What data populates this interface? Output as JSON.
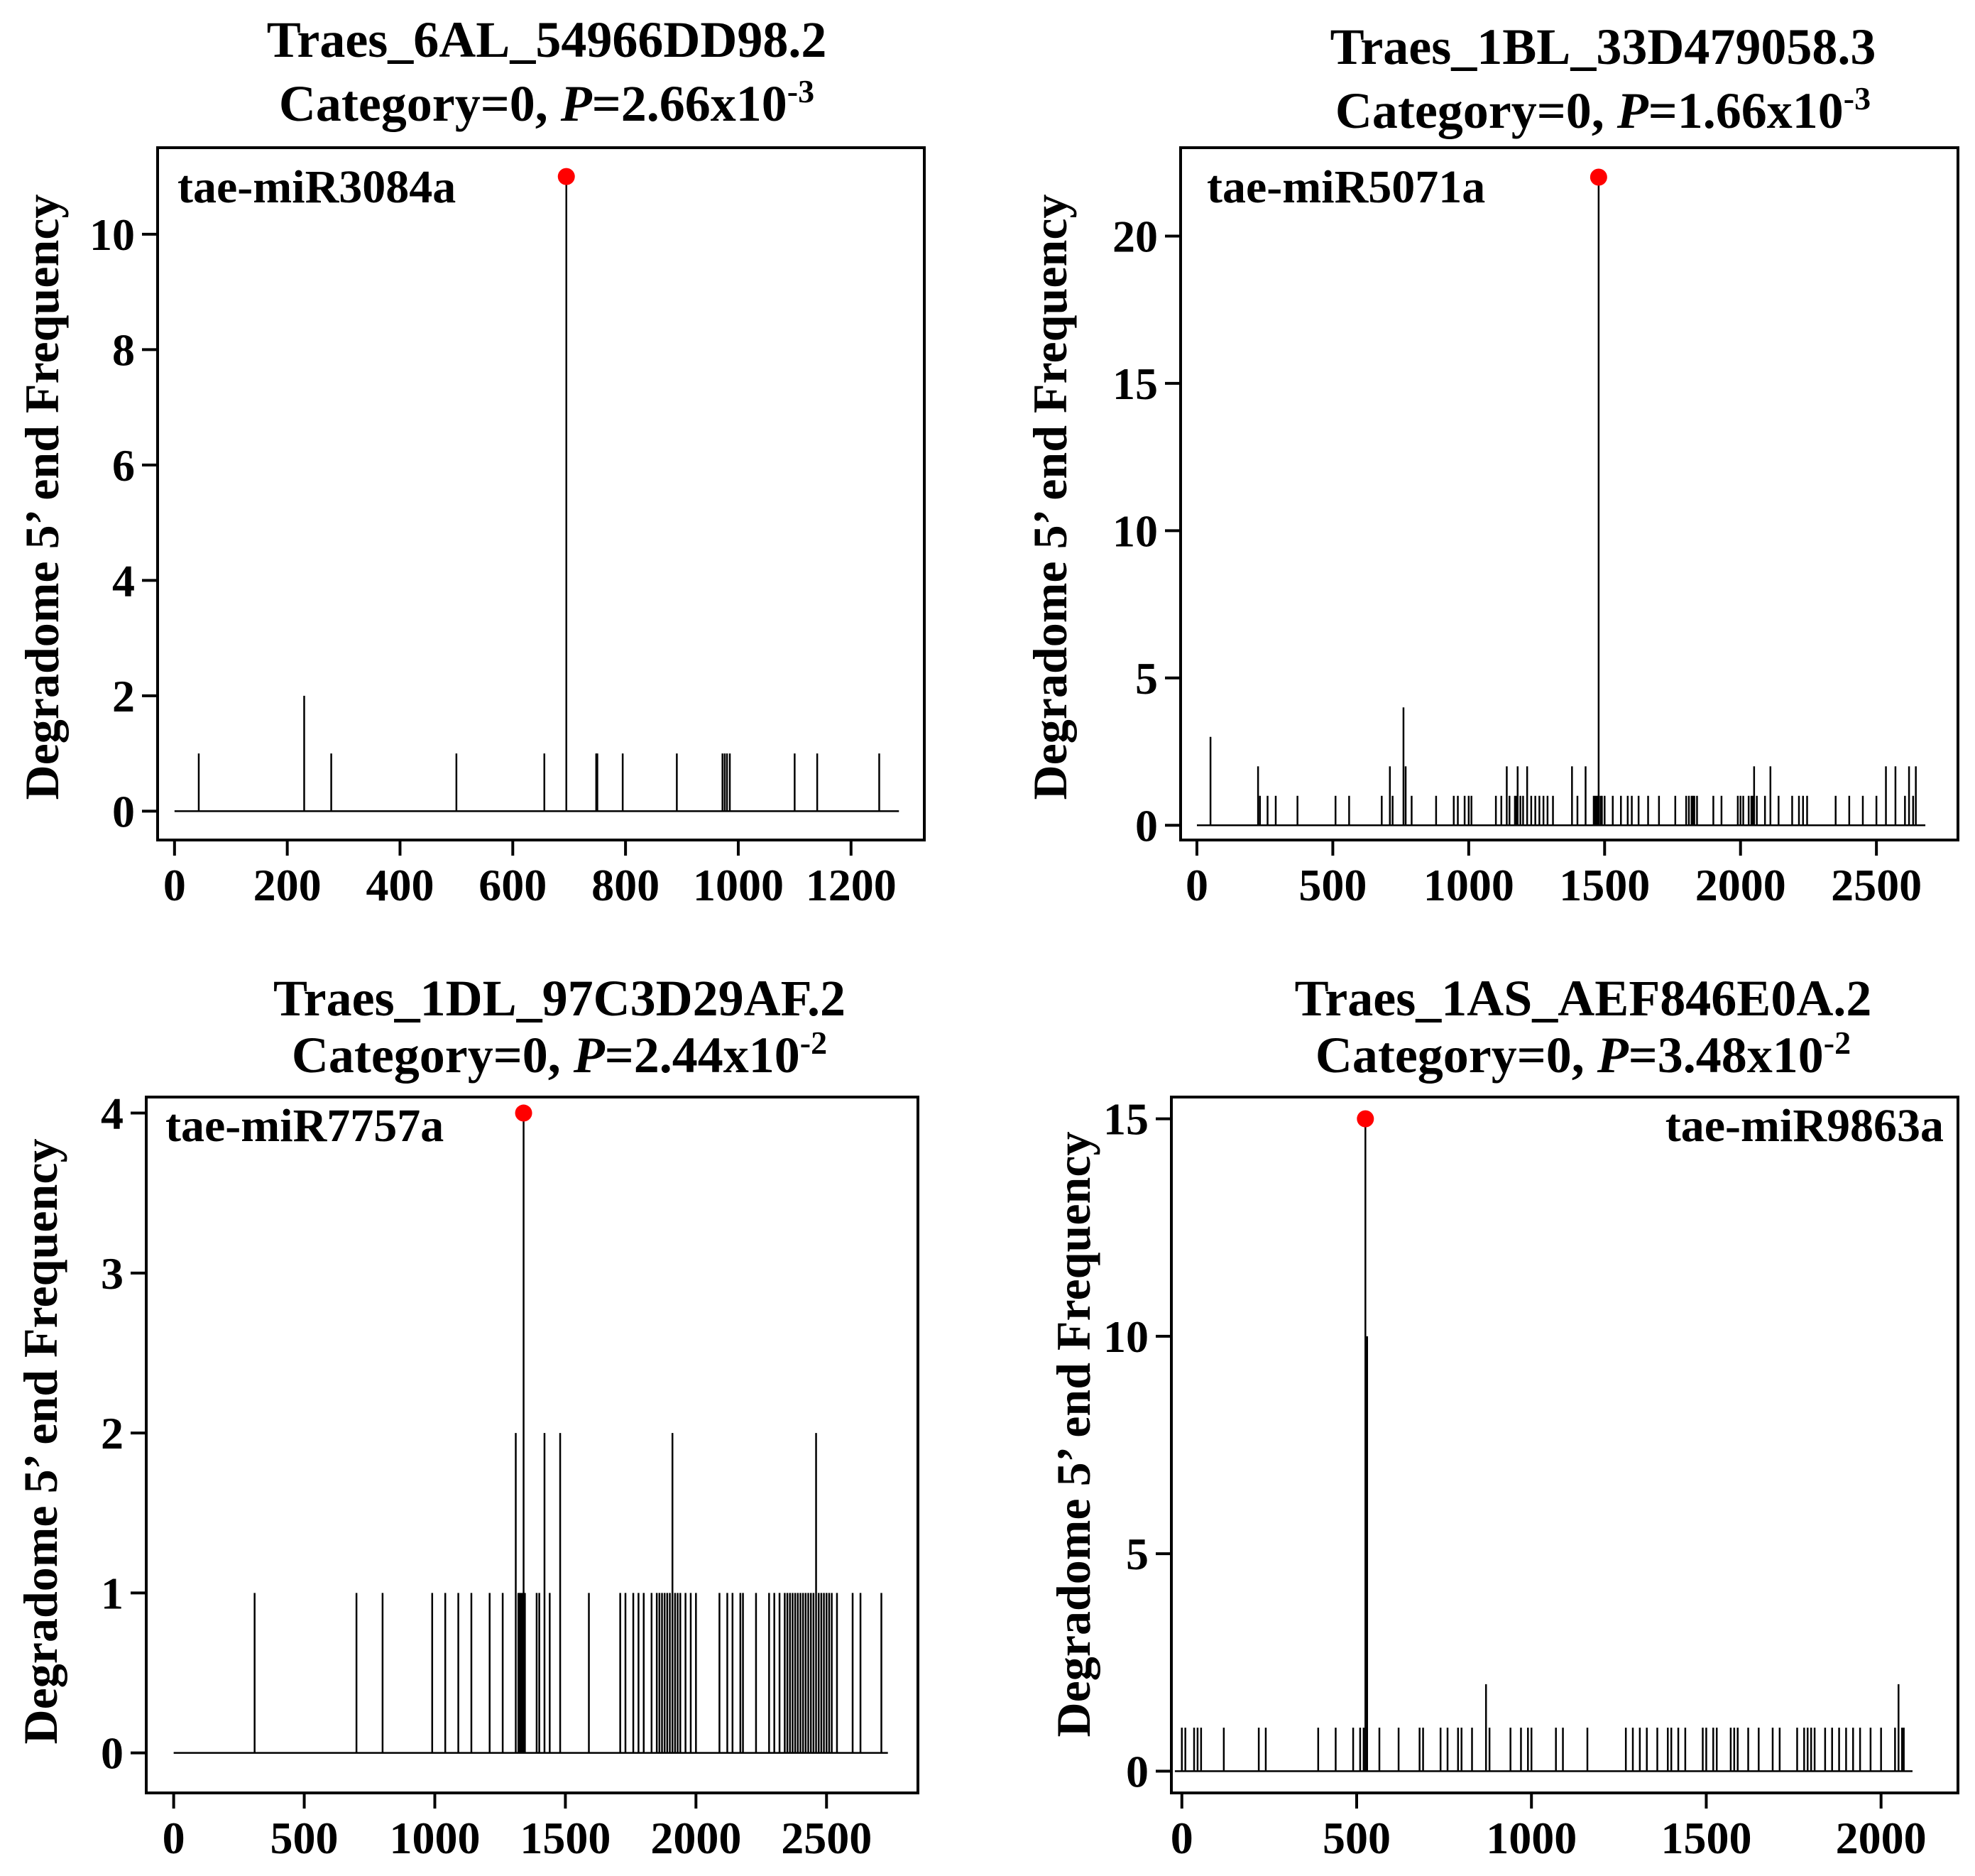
{
  "chart_data": [
    {
      "type": "bar",
      "title_line1": "Traes_6AL_54966DD98.2",
      "category_text": "Category=0, ",
      "p_italic": "P",
      "p_value_text": "=2.66x10",
      "p_exponent": "-3",
      "mirna": "tae-miR3084a",
      "ylabel": "Degradome 5’ end Frequency",
      "xlabel": "",
      "x_domain": [
        -30,
        1330
      ],
      "y_domain": [
        -0.5,
        11.5
      ],
      "x_ticks": [
        0,
        200,
        400,
        600,
        800,
        1000,
        1200
      ],
      "x_tick_labels": [
        "0",
        "200",
        "400",
        "600",
        "800",
        "1000",
        "1200"
      ],
      "y_ticks": [
        0,
        2,
        4,
        6,
        8,
        10
      ],
      "y_tick_labels": [
        "0",
        "2",
        "4",
        "6",
        "8",
        "10"
      ],
      "baseline_range": [
        0,
        1285
      ],
      "cleavage_site": {
        "x": 695,
        "y": 11
      },
      "highlight_color": "#ff0000",
      "peaks": [
        [
          43,
          1
        ],
        [
          230,
          2
        ],
        [
          278,
          1
        ],
        [
          500,
          1
        ],
        [
          656,
          1
        ],
        [
          695,
          11
        ],
        [
          748,
          1
        ],
        [
          750,
          1
        ],
        [
          795,
          1
        ],
        [
          891,
          1
        ],
        [
          972,
          1
        ],
        [
          976,
          1
        ],
        [
          980,
          1
        ],
        [
          985,
          1
        ],
        [
          1100,
          1
        ],
        [
          1140,
          1
        ],
        [
          1250,
          1
        ]
      ]
    },
    {
      "type": "bar",
      "title_line1": "Traes_1BL_33D479058.3",
      "category_text": "Category=0, ",
      "p_italic": "P",
      "p_value_text": "=1.66x10",
      "p_exponent": "-3",
      "mirna": "tae-miR5071a",
      "ylabel": "Degradome 5’ end Frequency",
      "xlabel": "",
      "x_domain": [
        -60,
        2800
      ],
      "y_domain": [
        -0.5,
        23
      ],
      "x_ticks": [
        0,
        500,
        1000,
        1500,
        2000,
        2500
      ],
      "x_tick_labels": [
        "0",
        "500",
        "1000",
        "1500",
        "2000",
        "2500"
      ],
      "y_ticks": [
        0,
        5,
        10,
        15,
        20
      ],
      "y_tick_labels": [
        "0",
        "5",
        "10",
        "15",
        "20"
      ],
      "baseline_range": [
        0,
        2680
      ],
      "cleavage_site": {
        "x": 1478,
        "y": 22
      },
      "highlight_color": "#ff0000",
      "peaks": [
        [
          50,
          3
        ],
        [
          225,
          2
        ],
        [
          232,
          1
        ],
        [
          260,
          1
        ],
        [
          290,
          1
        ],
        [
          370,
          1
        ],
        [
          510,
          1
        ],
        [
          560,
          1
        ],
        [
          680,
          1
        ],
        [
          710,
          2
        ],
        [
          720,
          1
        ],
        [
          760,
          4
        ],
        [
          768,
          2
        ],
        [
          790,
          1
        ],
        [
          880,
          1
        ],
        [
          945,
          1
        ],
        [
          960,
          1
        ],
        [
          985,
          1
        ],
        [
          1000,
          1
        ],
        [
          1010,
          1
        ],
        [
          1100,
          1
        ],
        [
          1120,
          1
        ],
        [
          1140,
          2
        ],
        [
          1150,
          1
        ],
        [
          1170,
          1
        ],
        [
          1175,
          1
        ],
        [
          1180,
          2
        ],
        [
          1190,
          1
        ],
        [
          1200,
          1
        ],
        [
          1215,
          2
        ],
        [
          1230,
          1
        ],
        [
          1245,
          1
        ],
        [
          1260,
          1
        ],
        [
          1275,
          1
        ],
        [
          1290,
          1
        ],
        [
          1310,
          1
        ],
        [
          1380,
          2
        ],
        [
          1400,
          1
        ],
        [
          1430,
          2
        ],
        [
          1460,
          1
        ],
        [
          1465,
          1
        ],
        [
          1470,
          1
        ],
        [
          1475,
          1
        ],
        [
          1478,
          22
        ],
        [
          1485,
          1
        ],
        [
          1490,
          1
        ],
        [
          1500,
          1
        ],
        [
          1530,
          1
        ],
        [
          1560,
          1
        ],
        [
          1585,
          1
        ],
        [
          1600,
          1
        ],
        [
          1625,
          1
        ],
        [
          1660,
          1
        ],
        [
          1700,
          1
        ],
        [
          1760,
          1
        ],
        [
          1800,
          1
        ],
        [
          1810,
          1
        ],
        [
          1820,
          1
        ],
        [
          1825,
          1
        ],
        [
          1830,
          1
        ],
        [
          1840,
          1
        ],
        [
          1900,
          1
        ],
        [
          1930,
          1
        ],
        [
          1990,
          1
        ],
        [
          2000,
          1
        ],
        [
          2010,
          1
        ],
        [
          2030,
          1
        ],
        [
          2040,
          1
        ],
        [
          2045,
          1
        ],
        [
          2050,
          2
        ],
        [
          2060,
          1
        ],
        [
          2090,
          1
        ],
        [
          2110,
          2
        ],
        [
          2140,
          1
        ],
        [
          2190,
          1
        ],
        [
          2215,
          1
        ],
        [
          2230,
          1
        ],
        [
          2245,
          1
        ],
        [
          2350,
          1
        ],
        [
          2400,
          1
        ],
        [
          2450,
          1
        ],
        [
          2500,
          1
        ],
        [
          2535,
          2
        ],
        [
          2570,
          2
        ],
        [
          2605,
          1
        ],
        [
          2620,
          2
        ],
        [
          2635,
          1
        ],
        [
          2645,
          2
        ]
      ]
    },
    {
      "type": "bar",
      "title_line1": "Traes_1DL_97C3D29AF.2",
      "category_text": "Category=0, ",
      "p_italic": "P",
      "p_value_text": "=2.44x10",
      "p_exponent": "-2",
      "mirna": "tae-miR7757a",
      "ylabel": "Degradome 5’ end Frequency",
      "xlabel": "",
      "x_domain": [
        -105,
        2850
      ],
      "y_domain": [
        -0.25,
        4.1
      ],
      "x_ticks": [
        0,
        500,
        1000,
        1500,
        2000,
        2500
      ],
      "x_tick_labels": [
        "0",
        "500",
        "1000",
        "1500",
        "2000",
        "2500"
      ],
      "y_ticks": [
        0,
        1,
        2,
        3,
        4
      ],
      "y_tick_labels": [
        "0",
        "1",
        "2",
        "3",
        "4"
      ],
      "baseline_range": [
        0,
        2735
      ],
      "cleavage_site": {
        "x": 1340,
        "y": 4
      },
      "highlight_color": "#ff0000",
      "peaks": [
        [
          310,
          1
        ],
        [
          700,
          1
        ],
        [
          800,
          1
        ],
        [
          990,
          1
        ],
        [
          1040,
          1
        ],
        [
          1090,
          1
        ],
        [
          1140,
          1
        ],
        [
          1210,
          1
        ],
        [
          1260,
          1
        ],
        [
          1310,
          2
        ],
        [
          1320,
          1
        ],
        [
          1325,
          1
        ],
        [
          1330,
          1
        ],
        [
          1335,
          1
        ],
        [
          1340,
          4
        ],
        [
          1345,
          1
        ],
        [
          1390,
          1
        ],
        [
          1400,
          1
        ],
        [
          1420,
          2
        ],
        [
          1440,
          1
        ],
        [
          1480,
          2
        ],
        [
          1590,
          1
        ],
        [
          1710,
          1
        ],
        [
          1730,
          1
        ],
        [
          1760,
          1
        ],
        [
          1780,
          1
        ],
        [
          1800,
          1
        ],
        [
          1830,
          1
        ],
        [
          1850,
          1
        ],
        [
          1860,
          1
        ],
        [
          1870,
          1
        ],
        [
          1880,
          1
        ],
        [
          1890,
          1
        ],
        [
          1900,
          1
        ],
        [
          1910,
          2
        ],
        [
          1920,
          1
        ],
        [
          1930,
          1
        ],
        [
          1940,
          1
        ],
        [
          1960,
          1
        ],
        [
          1980,
          1
        ],
        [
          2000,
          1
        ],
        [
          2090,
          1
        ],
        [
          2120,
          1
        ],
        [
          2140,
          1
        ],
        [
          2170,
          1
        ],
        [
          2180,
          1
        ],
        [
          2230,
          1
        ],
        [
          2280,
          1
        ],
        [
          2300,
          1
        ],
        [
          2320,
          1
        ],
        [
          2340,
          1
        ],
        [
          2350,
          1
        ],
        [
          2360,
          1
        ],
        [
          2370,
          1
        ],
        [
          2380,
          1
        ],
        [
          2390,
          1
        ],
        [
          2400,
          1
        ],
        [
          2410,
          1
        ],
        [
          2420,
          1
        ],
        [
          2430,
          1
        ],
        [
          2440,
          1
        ],
        [
          2450,
          1
        ],
        [
          2460,
          2
        ],
        [
          2470,
          1
        ],
        [
          2480,
          1
        ],
        [
          2490,
          1
        ],
        [
          2500,
          1
        ],
        [
          2510,
          1
        ],
        [
          2520,
          1
        ],
        [
          2540,
          1
        ],
        [
          2600,
          1
        ],
        [
          2630,
          1
        ],
        [
          2710,
          1
        ]
      ]
    },
    {
      "type": "bar",
      "title_line1": "Traes_1AS_AEF846E0A.2",
      "category_text": "Category=0, ",
      "p_italic": "P",
      "p_value_text": "=3.48x10",
      "p_exponent": "-2",
      "mirna": "tae-miR9863a",
      "ylabel": "Degradome 5’ end Frequency",
      "xlabel": "",
      "x_domain": [
        -30,
        2220
      ],
      "y_domain": [
        -0.5,
        15.5
      ],
      "x_ticks": [
        0,
        500,
        1000,
        1500,
        2000
      ],
      "x_tick_labels": [
        "0",
        "500",
        "1000",
        "1500",
        "2000"
      ],
      "y_ticks": [
        0,
        5,
        10,
        15
      ],
      "y_tick_labels": [
        "0",
        "5",
        "10",
        "15"
      ],
      "baseline_range": [
        -20,
        2090
      ],
      "cleavage_site": {
        "x": 525,
        "y": 15
      },
      "highlight_color": "#ff0000",
      "peaks": [
        [
          0,
          1
        ],
        [
          10,
          1
        ],
        [
          35,
          1
        ],
        [
          45,
          1
        ],
        [
          55,
          1
        ],
        [
          120,
          1
        ],
        [
          220,
          1
        ],
        [
          240,
          1
        ],
        [
          390,
          1
        ],
        [
          440,
          1
        ],
        [
          490,
          1
        ],
        [
          510,
          1
        ],
        [
          520,
          1
        ],
        [
          525,
          15
        ],
        [
          530,
          10
        ],
        [
          565,
          1
        ],
        [
          620,
          1
        ],
        [
          680,
          1
        ],
        [
          690,
          1
        ],
        [
          740,
          1
        ],
        [
          760,
          1
        ],
        [
          790,
          1
        ],
        [
          800,
          1
        ],
        [
          830,
          1
        ],
        [
          870,
          2
        ],
        [
          880,
          1
        ],
        [
          940,
          1
        ],
        [
          970,
          1
        ],
        [
          990,
          1
        ],
        [
          1000,
          1
        ],
        [
          1070,
          1
        ],
        [
          1090,
          1
        ],
        [
          1160,
          1
        ],
        [
          1270,
          1
        ],
        [
          1290,
          1
        ],
        [
          1310,
          1
        ],
        [
          1330,
          1
        ],
        [
          1360,
          1
        ],
        [
          1390,
          1
        ],
        [
          1400,
          1
        ],
        [
          1420,
          1
        ],
        [
          1440,
          1
        ],
        [
          1490,
          1
        ],
        [
          1500,
          1
        ],
        [
          1520,
          1
        ],
        [
          1530,
          1
        ],
        [
          1570,
          1
        ],
        [
          1580,
          1
        ],
        [
          1590,
          1
        ],
        [
          1620,
          1
        ],
        [
          1650,
          1
        ],
        [
          1690,
          1
        ],
        [
          1710,
          1
        ],
        [
          1760,
          1
        ],
        [
          1780,
          1
        ],
        [
          1790,
          1
        ],
        [
          1800,
          1
        ],
        [
          1810,
          1
        ],
        [
          1840,
          1
        ],
        [
          1860,
          1
        ],
        [
          1880,
          1
        ],
        [
          1900,
          1
        ],
        [
          1920,
          1
        ],
        [
          1940,
          1
        ],
        [
          1970,
          1
        ],
        [
          2000,
          1
        ],
        [
          2040,
          1
        ],
        [
          2050,
          2
        ],
        [
          2060,
          1
        ],
        [
          2065,
          1
        ]
      ]
    }
  ]
}
